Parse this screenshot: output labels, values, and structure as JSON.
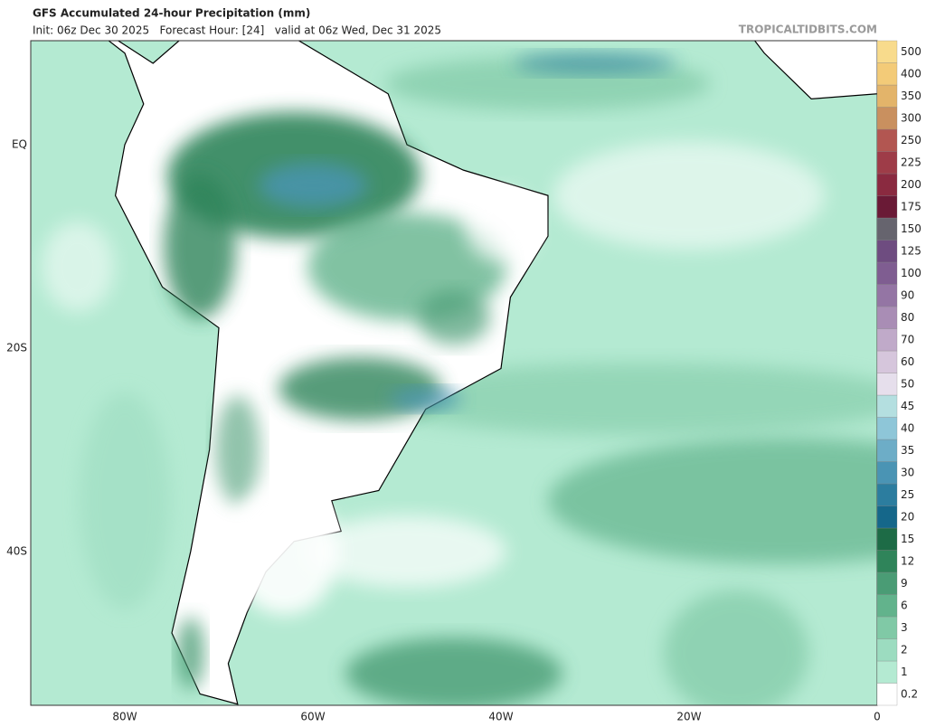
{
  "header": {
    "title": "GFS Accumulated 24-hour Precipitation (mm)",
    "subtitle": "Init: 06z Dec 30 2025   Forecast Hour: [24]   valid at 06z Wed, Dec 31 2025",
    "site": "TROPICALTIDBITS.COM"
  },
  "map": {
    "lat_labels": [
      "EQ",
      "20S",
      "40S"
    ],
    "lon_labels": [
      "80W",
      "60W",
      "40W",
      "20W",
      "0"
    ]
  },
  "colorbar": {
    "levels": [
      "0.2",
      "1",
      "2",
      "3",
      "6",
      "9",
      "12",
      "15",
      "20",
      "25",
      "30",
      "35",
      "40",
      "45",
      "50",
      "60",
      "70",
      "80",
      "90",
      "100",
      "125",
      "150",
      "175",
      "200",
      "225",
      "250",
      "300",
      "350",
      "400",
      "500"
    ],
    "colors": [
      "#ffffff",
      "#b4ead2",
      "#9cdcc0",
      "#80c9a6",
      "#62b38c",
      "#4a9c75",
      "#2f845a",
      "#1d6b46",
      "#15678a",
      "#2c7d9f",
      "#4a94b4",
      "#6dadc7",
      "#8ec6d8",
      "#b4dfe0",
      "#e6dfec",
      "#d6c6dc",
      "#c0aac9",
      "#a98db5",
      "#9475a4",
      "#7f5d91",
      "#6e4c80",
      "#66646e",
      "#6a1a36",
      "#8a2a40",
      "#9e3c48",
      "#b25651",
      "#c9905f",
      "#e3b46a",
      "#f3cb78",
      "#f8db8c"
    ]
  }
}
